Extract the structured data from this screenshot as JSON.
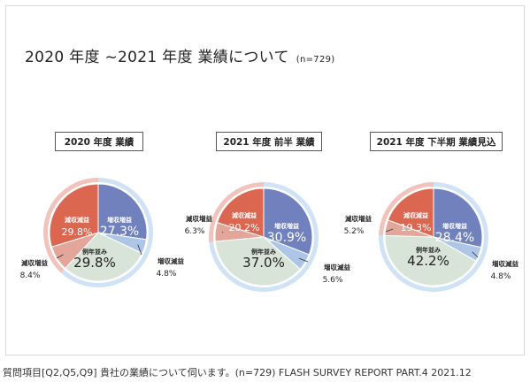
{
  "title": "2020 年度 ~2021 年度 業績について",
  "title_n": "(n=729)",
  "footer": "質問項目[Q2,Q5,Q9] 貴社の業績について伺います。(n=729) FLASH SURVEY REPORT PART.4 2021.12",
  "colors": {
    "増収増益": "#7181bd",
    "増収減益": "#adc5e6",
    "例年並み": "#d9e4d9",
    "減収増益": "#e3a69a",
    "減収減益": "#db6751",
    "ring_increase": "#cfe2f6",
    "ring_decrease": "#f0c4bd"
  },
  "chart_data": [
    {
      "type": "pie",
      "title": "2020 年度 業績",
      "slices": [
        {
          "label": "増収増益",
          "value": 27.3,
          "display": "27.3%"
        },
        {
          "label": "増収減益",
          "value": 4.8,
          "display": "4.8%"
        },
        {
          "label": "例年並み",
          "value": 29.8,
          "display": "29.8%"
        },
        {
          "label": "減収増益",
          "value": 8.4,
          "display": "8.4%"
        },
        {
          "label": "減収減益",
          "value": 29.8,
          "display": "29.8%"
        }
      ]
    },
    {
      "type": "pie",
      "title": "2021 年度 前半 業績",
      "slices": [
        {
          "label": "増収増益",
          "value": 30.9,
          "display": "30.9%"
        },
        {
          "label": "増収減益",
          "value": 5.6,
          "display": "5.6%"
        },
        {
          "label": "例年並み",
          "value": 37.0,
          "display": "37.0%"
        },
        {
          "label": "減収増益",
          "value": 6.3,
          "display": "6.3%"
        },
        {
          "label": "減収減益",
          "value": 20.2,
          "display": "20.2%"
        }
      ]
    },
    {
      "type": "pie",
      "title": "2021 年度 下半期 業績見込",
      "slices": [
        {
          "label": "増収増益",
          "value": 28.4,
          "display": "28.4%"
        },
        {
          "label": "増収減益",
          "value": 4.8,
          "display": "4.8%"
        },
        {
          "label": "例年並み",
          "value": 42.2,
          "display": "42.2%"
        },
        {
          "label": "減収増益",
          "value": 5.2,
          "display": "5.2%"
        },
        {
          "label": "減収減益",
          "value": 19.3,
          "display": "19.3%"
        }
      ]
    }
  ]
}
